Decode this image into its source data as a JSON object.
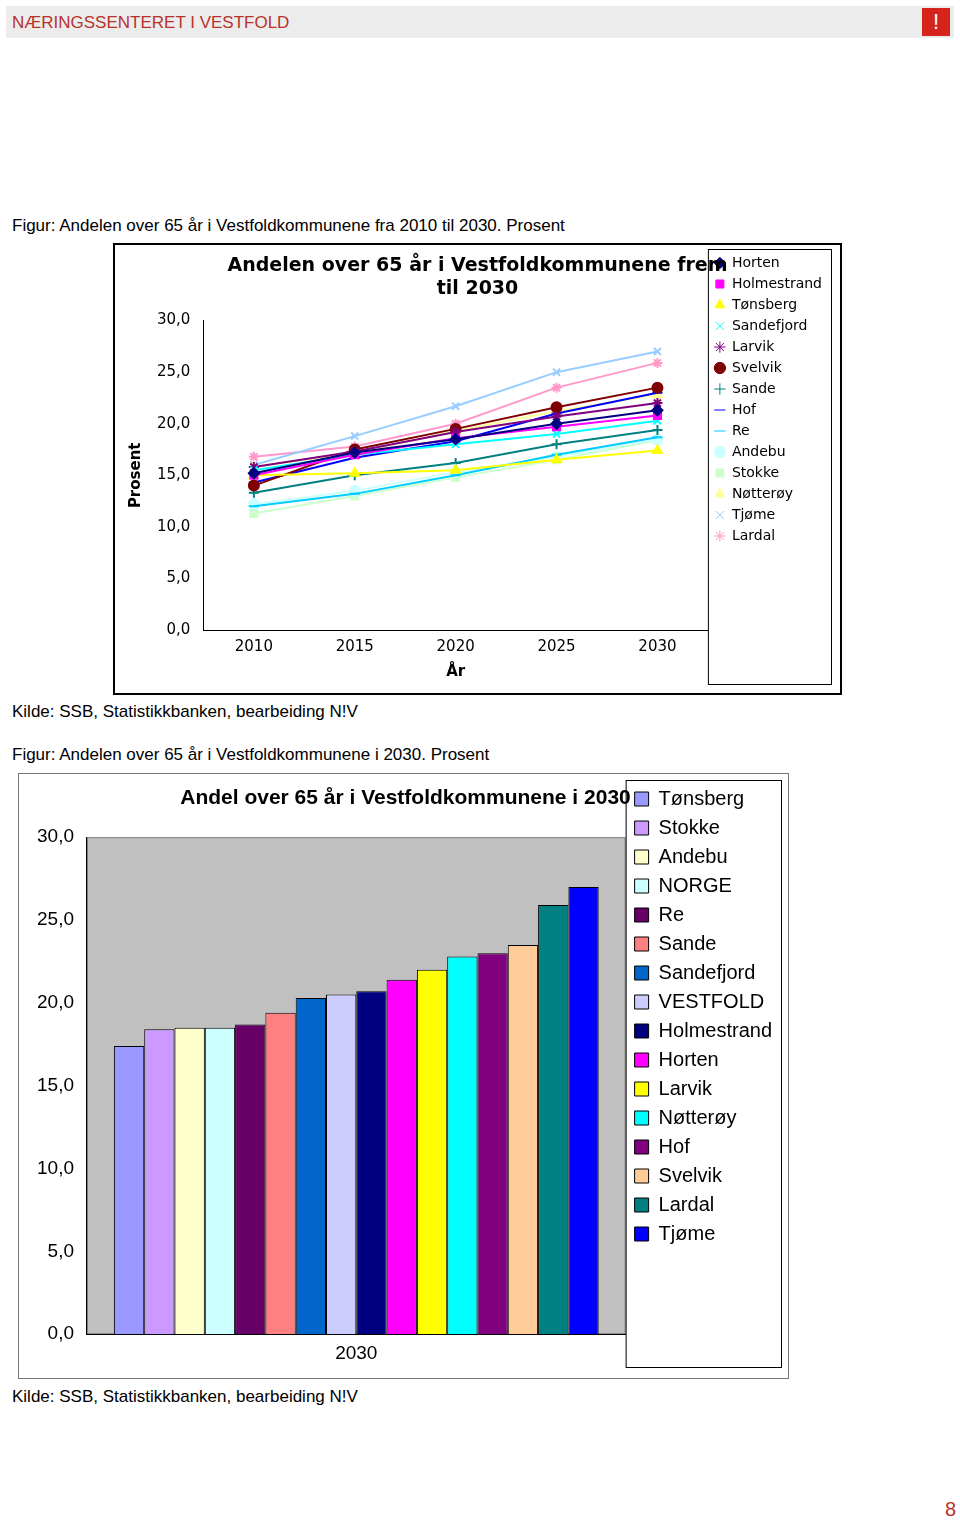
{
  "page": {
    "header": "NÆRINGSSENTERET I VESTFOLD",
    "mark": "!",
    "page_number": "8",
    "figures": [
      {
        "caption": "Figur: Andelen over 65 år i Vestfoldkommunene fra 2010 til 2030. Prosent",
        "source": "Kilde: SSB, Statistikkbanken, bearbeiding N!V"
      },
      {
        "caption": "Figur: Andelen over 65 år i Vestfoldkommunene i 2030. Prosent",
        "source": "Kilde: SSB, Statistikkbanken, bearbeiding N!V"
      }
    ]
  },
  "chart_data": [
    {
      "type": "line",
      "title": "Andelen over 65 år i Vestfoldkommunene frem til 2030",
      "xlabel": "År",
      "ylabel": "Prosent",
      "categories": [
        "2010",
        "2015",
        "2020",
        "2025",
        "2030"
      ],
      "ylim": [
        0,
        30
      ],
      "yticks": [
        {
          "value": 0,
          "label": "0,0"
        },
        {
          "value": 5,
          "label": "5,0"
        },
        {
          "value": 10,
          "label": "10,0"
        },
        {
          "value": 15,
          "label": "15,0"
        },
        {
          "value": 20,
          "label": "20,0"
        },
        {
          "value": 25,
          "label": "25,0"
        },
        {
          "value": 30,
          "label": "30,0"
        }
      ],
      "grid": false,
      "legend": "right",
      "series": [
        {
          "name": "Horten",
          "color": "#000080",
          "marker": "diamond",
          "values": [
            15.2,
            17.2,
            18.5,
            20.0,
            21.3
          ]
        },
        {
          "name": "Holmestrand",
          "color": "#ff00ff",
          "marker": "square",
          "values": [
            15.0,
            17.0,
            18.6,
            19.7,
            20.8
          ]
        },
        {
          "name": "Tønsberg",
          "color": "#ffff00",
          "marker": "triangle",
          "values": [
            15.0,
            15.2,
            15.5,
            16.5,
            17.4
          ]
        },
        {
          "name": "Sandefjord",
          "color": "#00ffff",
          "marker": "x",
          "values": [
            15.5,
            17.0,
            18.0,
            19.0,
            20.3
          ]
        },
        {
          "name": "Larvik",
          "color": "#800080",
          "marker": "star",
          "values": [
            15.8,
            17.3,
            19.2,
            20.7,
            22.0
          ]
        },
        {
          "name": "Svelvik",
          "color": "#800000",
          "marker": "circle",
          "values": [
            14.0,
            17.5,
            19.5,
            21.6,
            23.5
          ]
        },
        {
          "name": "Sande",
          "color": "#008080",
          "marker": "plus",
          "values": [
            13.3,
            15.0,
            16.2,
            18.0,
            19.4
          ]
        },
        {
          "name": "Hof",
          "color": "#0000ff",
          "marker": "dash",
          "values": [
            14.3,
            16.7,
            18.3,
            21.0,
            23.0
          ]
        },
        {
          "name": "Re",
          "color": "#00ccff",
          "marker": "dash",
          "values": [
            12.0,
            13.2,
            15.0,
            17.0,
            18.7
          ]
        },
        {
          "name": "Andebu",
          "color": "#ccffff",
          "marker": "circle",
          "values": [
            12.2,
            13.5,
            15.3,
            16.8,
            18.5
          ]
        },
        {
          "name": "Stokke",
          "color": "#ccffcc",
          "marker": "square",
          "values": [
            11.3,
            13.0,
            14.8,
            16.5,
            18.4
          ]
        },
        {
          "name": "Nøtterøy",
          "color": "#ffff99",
          "marker": "triangle",
          "values": [
            15.8,
            17.2,
            19.3,
            21.2,
            22.8
          ]
        },
        {
          "name": "Tjøme",
          "color": "#99ccff",
          "marker": "x",
          "values": [
            16.0,
            18.8,
            21.7,
            25.0,
            27.0
          ]
        },
        {
          "name": "Lardal",
          "color": "#ff99cc",
          "marker": "star",
          "values": [
            16.8,
            17.8,
            20.0,
            23.5,
            25.9
          ]
        }
      ]
    },
    {
      "type": "bar",
      "title": "Andel over 65 år i Vestfoldkommunene i 2030",
      "categories": [
        "2030"
      ],
      "ylim": [
        0,
        30
      ],
      "yticks": [
        {
          "value": 0,
          "label": "0,0"
        },
        {
          "value": 5,
          "label": "5,0"
        },
        {
          "value": 10,
          "label": "10,0"
        },
        {
          "value": 15,
          "label": "15,0"
        },
        {
          "value": 20,
          "label": "20,0"
        },
        {
          "value": 25,
          "label": "25,0"
        },
        {
          "value": 30,
          "label": "30,0"
        }
      ],
      "grid": false,
      "legend": "right",
      "series": [
        {
          "name": "Tønsberg",
          "color": "#9999ff",
          "values": [
            17.4
          ]
        },
        {
          "name": "Stokke",
          "color": "#cc99ff",
          "values": [
            18.4
          ]
        },
        {
          "name": "Andebu",
          "color": "#ffffcc",
          "values": [
            18.5
          ]
        },
        {
          "name": "NORGE",
          "color": "#ccffff",
          "values": [
            18.5
          ]
        },
        {
          "name": "Re",
          "color": "#660066",
          "values": [
            18.7
          ]
        },
        {
          "name": "Sande",
          "color": "#ff8080",
          "values": [
            19.4
          ]
        },
        {
          "name": "Sandefjord",
          "color": "#0066cc",
          "values": [
            20.3
          ]
        },
        {
          "name": "VESTFOLD",
          "color": "#ccccff",
          "values": [
            20.5
          ]
        },
        {
          "name": "Holmestrand",
          "color": "#000080",
          "values": [
            20.7
          ]
        },
        {
          "name": "Horten",
          "color": "#ff00ff",
          "values": [
            21.4
          ]
        },
        {
          "name": "Larvik",
          "color": "#ffff00",
          "values": [
            22.0
          ]
        },
        {
          "name": "Nøtterøy",
          "color": "#00ffff",
          "values": [
            22.8
          ]
        },
        {
          "name": "Hof",
          "color": "#800080",
          "values": [
            23.0
          ]
        },
        {
          "name": "Svelvik",
          "color": "#ffcc99",
          "values": [
            23.5
          ]
        },
        {
          "name": "Lardal",
          "color": "#008080",
          "values": [
            25.9
          ]
        },
        {
          "name": "Tjøme",
          "color": "#0000ff",
          "values": [
            27.0
          ]
        }
      ]
    }
  ]
}
